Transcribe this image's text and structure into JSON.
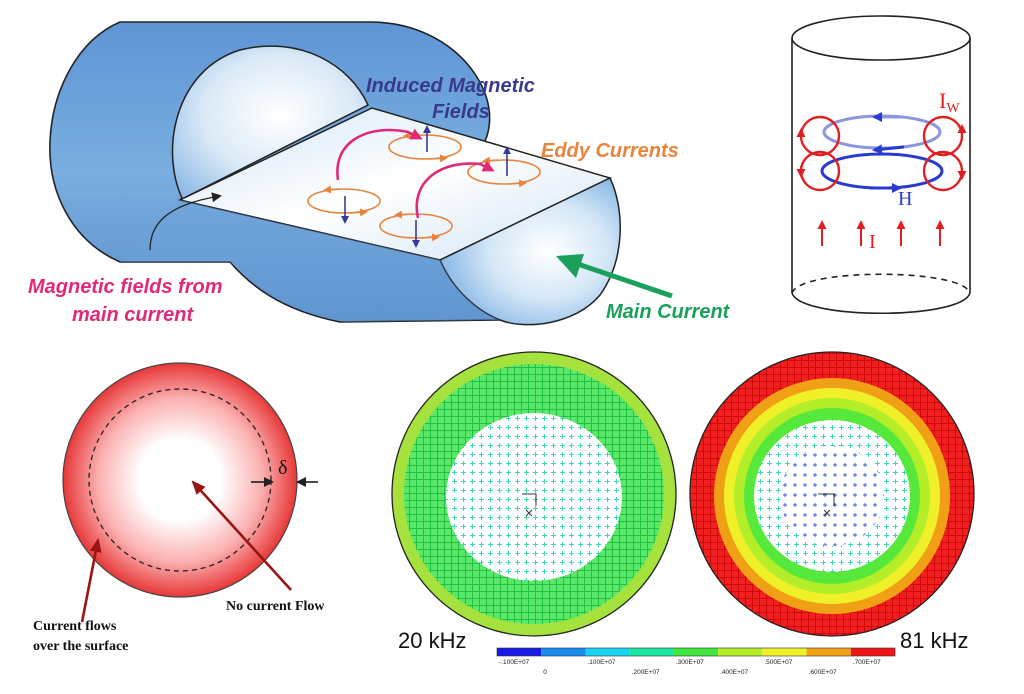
{
  "cylinder_panel": {
    "label_induced_line1": "Induced Magnetic",
    "label_induced_line2": "Fields",
    "label_eddy": "Eddy Currents",
    "label_magnetic_line1": "Magnetic fields from",
    "label_magnetic_line2": "main current",
    "label_main_current": "Main Current"
  },
  "wire_panel": {
    "label_iw": "I",
    "label_iw_sub": "W",
    "label_h": "H",
    "label_i": "I"
  },
  "skin_panel": {
    "label_delta": "δ",
    "label_no_current": "No current Flow",
    "label_surface_line1": "Current flows",
    "label_surface_line2": "over the surface"
  },
  "simulation": {
    "label_left_freq": "20 kHz",
    "label_right_freq": "81 kHz",
    "colorbar": {
      "colors": [
        "#1a1ae6",
        "#1a8cf0",
        "#19d2f0",
        "#19e6a0",
        "#3ee63e",
        "#b4ee28",
        "#f0f028",
        "#f0a014",
        "#f01414"
      ],
      "labels_top": [
        "-.100E+07",
        ".100E+07",
        ".300E+07",
        ".500E+07",
        ".700E+07"
      ],
      "labels_bottom": [
        "0",
        ".200E+07",
        ".400E+07",
        ".600E+07"
      ]
    }
  },
  "colors": {
    "induced_text": "#3a3a8c",
    "eddy_text": "#e8843c",
    "magnetic_text": "#e02a78",
    "main_current_text": "#1aa05a",
    "wire_red": "#e02020",
    "wire_blue": "#2a3ad0"
  }
}
